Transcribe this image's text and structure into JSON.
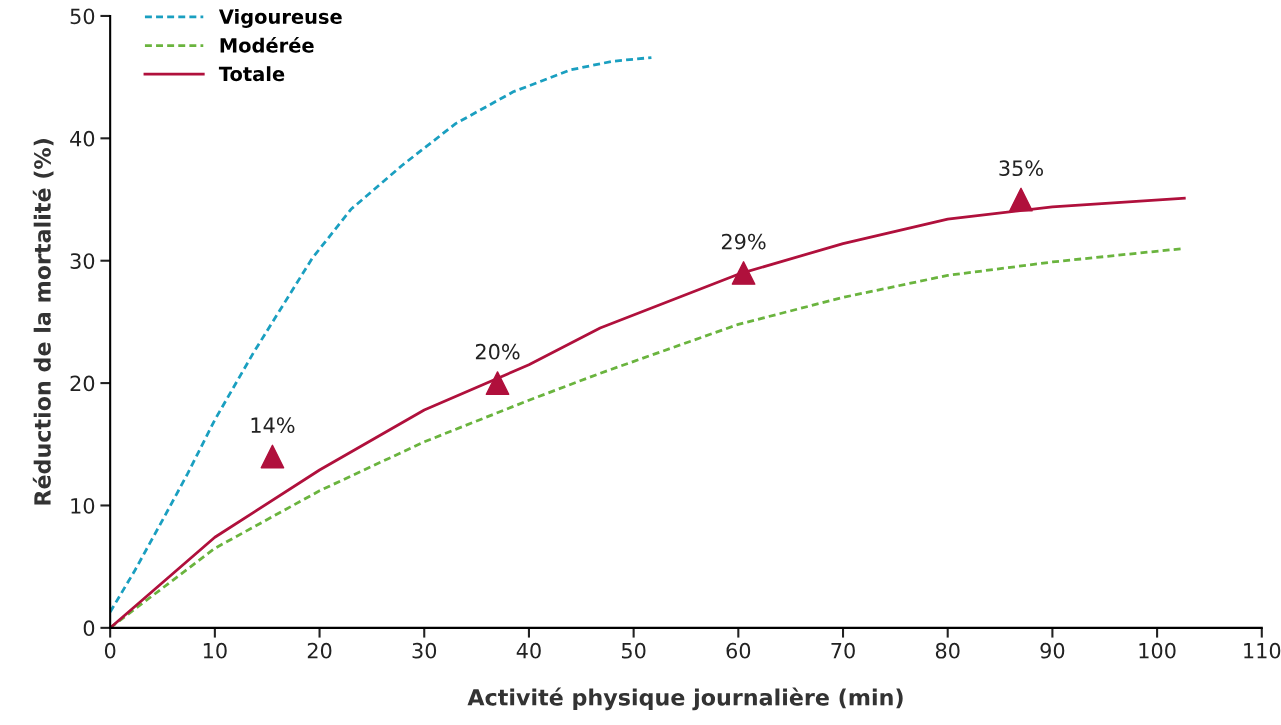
{
  "chart_data": {
    "type": "line",
    "xlabel": "Activité physique journalière (min)",
    "ylabel": "Réduction de la mortalité (%)",
    "xlim": [
      0,
      110
    ],
    "ylim": [
      0,
      50
    ],
    "xticks": [
      0,
      10,
      20,
      30,
      40,
      50,
      60,
      70,
      80,
      90,
      100,
      110
    ],
    "yticks": [
      0,
      10,
      20,
      30,
      40,
      50
    ],
    "grid": false,
    "legend": "top left",
    "series": [
      {
        "name": "Vigoureuse",
        "color": "#1a9fc0",
        "line_style": "dashed",
        "marker": "none",
        "x": [
          0,
          2.3,
          5,
          7.4,
          10,
          13.7,
          19.3,
          23,
          27.9,
          33,
          38.5,
          44,
          48,
          51.7
        ],
        "values": [
          1.3,
          4.6,
          8.8,
          12.6,
          17,
          22.5,
          30.2,
          34.2,
          37.8,
          41.2,
          43.8,
          45.6,
          46.3,
          46.6
        ]
      },
      {
        "name": "Modérée",
        "color": "#6ab43e",
        "line_style": "dashed",
        "marker": "none",
        "x": [
          0,
          10,
          20,
          30,
          40,
          46.8,
          60,
          70,
          80,
          90,
          102.6
        ],
        "values": [
          0,
          6.5,
          11.2,
          15.2,
          18.6,
          20.8,
          24.8,
          27,
          28.8,
          29.9,
          31
        ]
      },
      {
        "name": "Totale",
        "color": "#b0103c",
        "line_style": "solid",
        "marker": "none",
        "x": [
          0,
          10,
          20,
          30,
          40,
          46.8,
          60,
          70,
          80,
          90,
          102.6
        ],
        "values": [
          0,
          7.4,
          12.9,
          17.8,
          21.5,
          24.5,
          28.9,
          31.4,
          33.4,
          34.4,
          35.1
        ]
      },
      {
        "type": "scatter",
        "color": "#b0103c",
        "marker": "triangle",
        "x": [
          15.5,
          37,
          60.5,
          87
        ],
        "values": [
          14,
          20,
          29,
          35
        ],
        "value_labels": [
          "14%",
          "20%",
          "29%",
          "35%"
        ]
      }
    ]
  }
}
